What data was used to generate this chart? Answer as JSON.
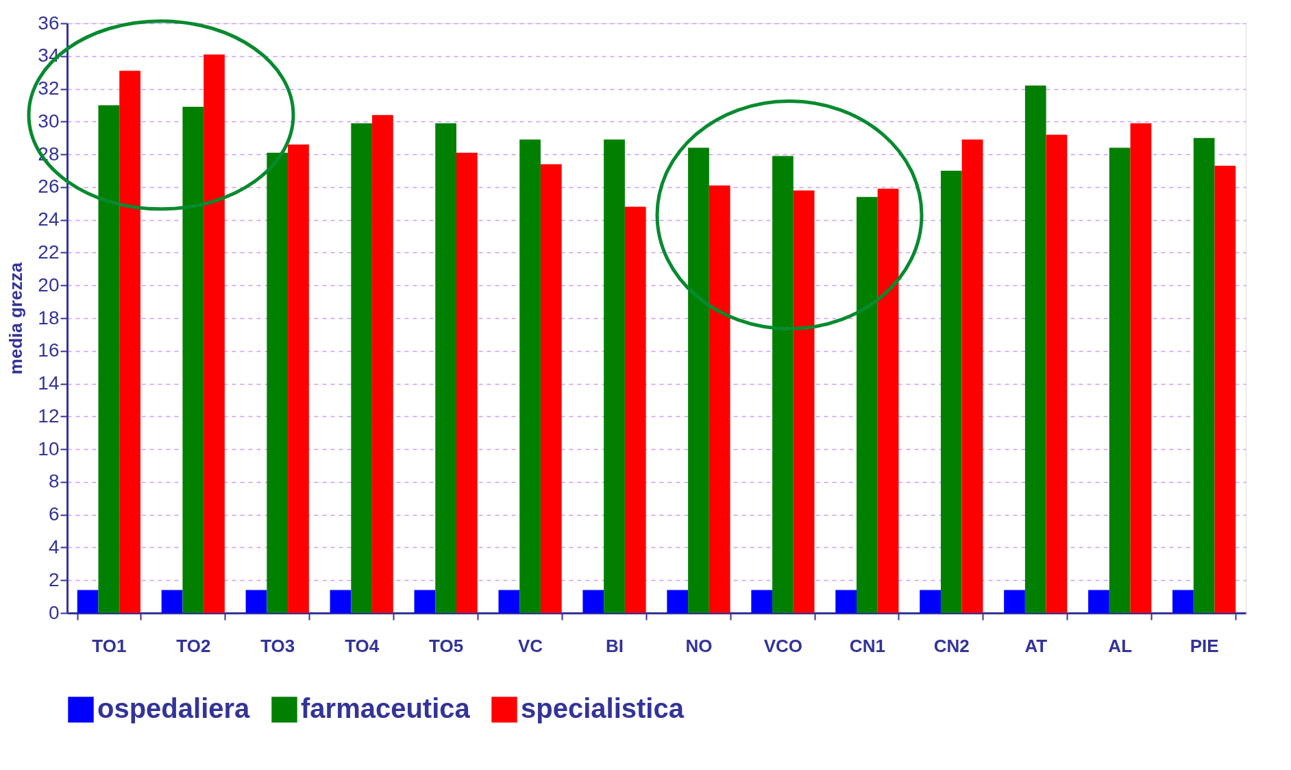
{
  "chart_data": {
    "type": "bar",
    "ylabel": "media grezza",
    "categories": [
      "TO1",
      "TO2",
      "TO3",
      "TO4",
      "TO5",
      "VC",
      "BI",
      "NO",
      "VCO",
      "CN1",
      "CN2",
      "AT",
      "AL",
      "PIE"
    ],
    "series": [
      {
        "name": "ospedaliera",
        "color": "#0000ff",
        "values": [
          1.4,
          1.4,
          1.4,
          1.4,
          1.4,
          1.4,
          1.4,
          1.4,
          1.4,
          1.4,
          1.4,
          1.4,
          1.4,
          1.4
        ]
      },
      {
        "name": "farmaceutica",
        "color": "#007f00",
        "values": [
          31.0,
          30.9,
          28.1,
          29.9,
          29.9,
          28.9,
          28.9,
          28.4,
          27.9,
          25.4,
          27.0,
          32.2,
          28.4,
          29.0
        ]
      },
      {
        "name": "specialistica",
        "color": "#ff0000",
        "values": [
          33.1,
          34.1,
          28.6,
          30.4,
          28.1,
          27.4,
          24.8,
          26.1,
          25.8,
          25.9,
          28.9,
          29.2,
          29.9,
          27.3
        ]
      }
    ],
    "ylim": [
      0,
      36
    ],
    "yticks": [
      0,
      2,
      4,
      6,
      8,
      10,
      12,
      14,
      16,
      18,
      20,
      22,
      24,
      26,
      28,
      30,
      32,
      34,
      36
    ],
    "grid": "y",
    "legend": "bottom"
  }
}
